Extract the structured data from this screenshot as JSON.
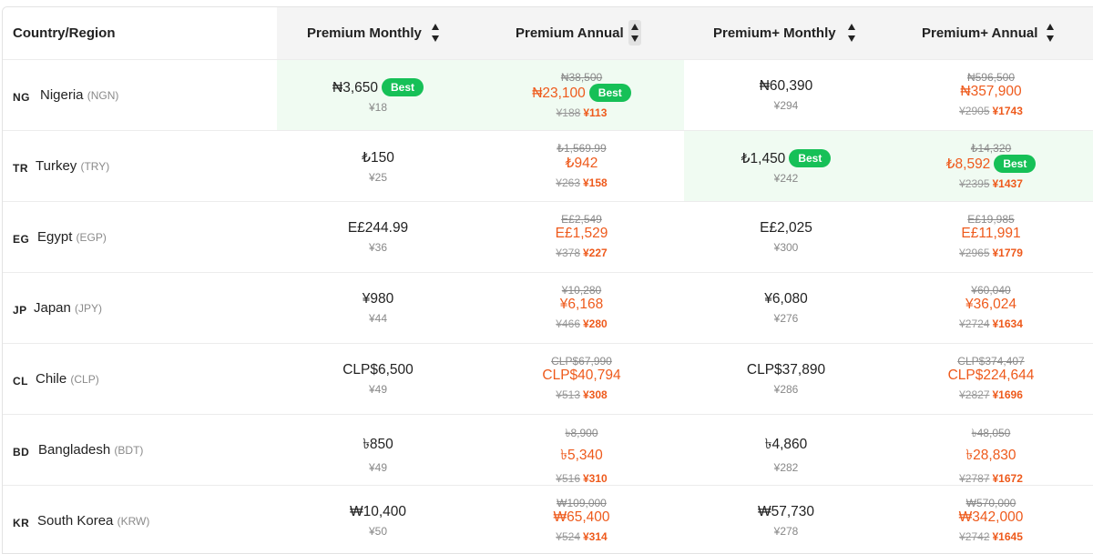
{
  "header": {
    "country": "Country/Region",
    "columns": [
      "Premium Monthly",
      "Premium Annual",
      "Premium+ Monthly",
      "Premium+ Annual"
    ],
    "sorted_column": "Premium Annual"
  },
  "best_label": "Best",
  "rows": [
    {
      "code": "NG",
      "name": "Nigeria",
      "currency": "(NGN)",
      "premium_monthly": {
        "price": "₦3,650",
        "cny": "¥18",
        "best": true
      },
      "premium_annual": {
        "original": "₦38,500",
        "price": "₦23,100",
        "cny_old": "¥188",
        "cny_new": "¥113",
        "best": true
      },
      "premium_plus_monthly": {
        "price": "₦60,390",
        "cny": "¥294",
        "best": false
      },
      "premium_plus_annual": {
        "original": "₦596,500",
        "price": "₦357,900",
        "cny_old": "¥2905",
        "cny_new": "¥1743",
        "best": false
      }
    },
    {
      "code": "TR",
      "name": "Turkey",
      "currency": "(TRY)",
      "premium_monthly": {
        "price": "₺150",
        "cny": "¥25",
        "best": false
      },
      "premium_annual": {
        "original": "₺1,569.99",
        "price": "₺942",
        "cny_old": "¥263",
        "cny_new": "¥158",
        "best": false
      },
      "premium_plus_monthly": {
        "price": "₺1,450",
        "cny": "¥242",
        "best": true
      },
      "premium_plus_annual": {
        "original": "₺14,320",
        "price": "₺8,592",
        "cny_old": "¥2395",
        "cny_new": "¥1437",
        "best": true
      }
    },
    {
      "code": "EG",
      "name": "Egypt",
      "currency": "(EGP)",
      "premium_monthly": {
        "price": "E£244.99",
        "cny": "¥36",
        "best": false
      },
      "premium_annual": {
        "original": "E£2,549",
        "price": "E£1,529",
        "cny_old": "¥378",
        "cny_new": "¥227",
        "best": false
      },
      "premium_plus_monthly": {
        "price": "E£2,025",
        "cny": "¥300",
        "best": false
      },
      "premium_plus_annual": {
        "original": "E£19,985",
        "price": "E£11,991",
        "cny_old": "¥2965",
        "cny_new": "¥1779",
        "best": false
      }
    },
    {
      "code": "JP",
      "name": "Japan",
      "currency": "(JPY)",
      "premium_monthly": {
        "price": "¥980",
        "cny": "¥44",
        "best": false
      },
      "premium_annual": {
        "original": "¥10,280",
        "price": "¥6,168",
        "cny_old": "¥466",
        "cny_new": "¥280",
        "best": false
      },
      "premium_plus_monthly": {
        "price": "¥6,080",
        "cny": "¥276",
        "best": false
      },
      "premium_plus_annual": {
        "original": "¥60,040",
        "price": "¥36,024",
        "cny_old": "¥2724",
        "cny_new": "¥1634",
        "best": false
      }
    },
    {
      "code": "CL",
      "name": "Chile",
      "currency": "(CLP)",
      "premium_monthly": {
        "price": "CLP$6,500",
        "cny": "¥49",
        "best": false
      },
      "premium_annual": {
        "original": "CLP$67,990",
        "price": "CLP$40,794",
        "cny_old": "¥513",
        "cny_new": "¥308",
        "best": false
      },
      "premium_plus_monthly": {
        "price": "CLP$37,890",
        "cny": "¥286",
        "best": false
      },
      "premium_plus_annual": {
        "original": "CLP$374,407",
        "price": "CLP$224,644",
        "cny_old": "¥2827",
        "cny_new": "¥1696",
        "best": false
      }
    },
    {
      "code": "BD",
      "name": "Bangladesh",
      "currency": "(BDT)",
      "premium_monthly": {
        "price": "৳850",
        "cny": "¥49",
        "best": false
      },
      "premium_annual": {
        "original": "৳8,900",
        "price": "৳5,340",
        "cny_old": "¥516",
        "cny_new": "¥310",
        "best": false
      },
      "premium_plus_monthly": {
        "price": "৳4,860",
        "cny": "¥282",
        "best": false
      },
      "premium_plus_annual": {
        "original": "৳48,050",
        "price": "৳28,830",
        "cny_old": "¥2787",
        "cny_new": "¥1672",
        "best": false
      }
    },
    {
      "code": "KR",
      "name": "South Korea",
      "currency": "(KRW)",
      "premium_monthly": {
        "price": "₩10,400",
        "cny": "¥50",
        "best": false
      },
      "premium_annual": {
        "original": "₩109,000",
        "price": "₩65,400",
        "cny_old": "¥524",
        "cny_new": "¥314",
        "best": false
      },
      "premium_plus_monthly": {
        "price": "₩57,730",
        "cny": "¥278",
        "best": false
      },
      "premium_plus_annual": {
        "original": "₩570,000",
        "price": "₩342,000",
        "cny_old": "¥2742",
        "cny_new": "¥1645",
        "best": false
      }
    }
  ],
  "colors": {
    "best_badge": "#16c057",
    "best_bg": "#f0fbf2",
    "sale_price": "#ee5a1c",
    "header_bg": "#f4f4f4"
  }
}
